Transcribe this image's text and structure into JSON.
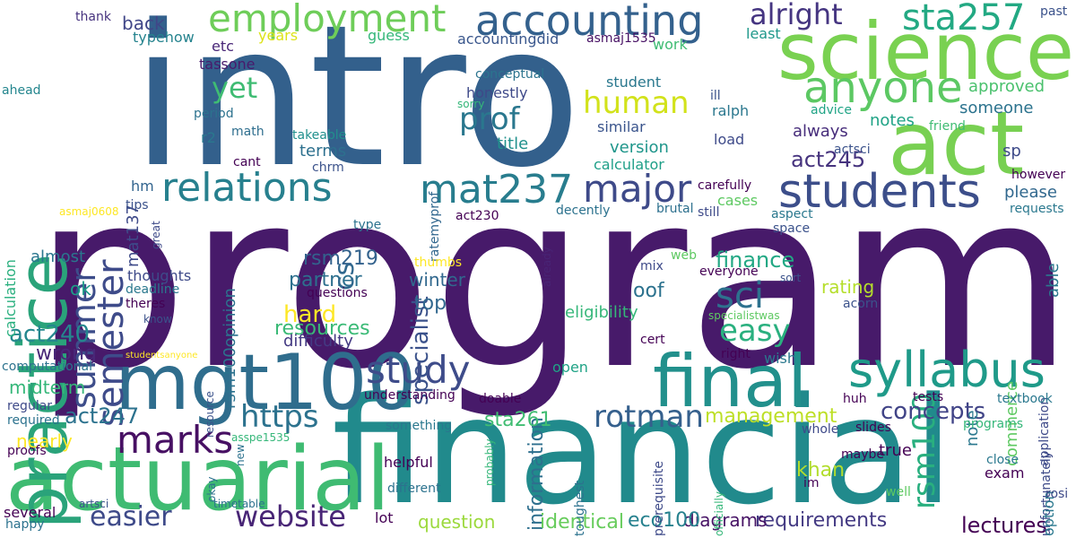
{
  "words": [
    {
      "text": "program",
      "color": "#471a6a"
    },
    {
      "text": "intro",
      "color": "#33608c"
    },
    {
      "text": "financial",
      "color": "#218a8c"
    },
    {
      "text": "actuarial",
      "color": "#3fbb72"
    },
    {
      "text": "science",
      "color": "#79d151"
    },
    {
      "text": "act",
      "color": "#78d052"
    },
    {
      "text": "practice",
      "color": "#2aa37a"
    },
    {
      "text": "mgt100",
      "color": "#2f6d8d"
    },
    {
      "text": "final",
      "color": "#22908c"
    },
    {
      "text": "syllabus",
      "color": "#1f9a89"
    },
    {
      "text": "students",
      "color": "#3c4e8a"
    },
    {
      "text": "accounting",
      "color": "#34618d"
    },
    {
      "text": "employment",
      "color": "#6ecd59"
    },
    {
      "text": "anyone",
      "color": "#5cc863"
    },
    {
      "text": "relations",
      "color": "#27808e"
    },
    {
      "text": "mat237",
      "color": "#287d8e"
    },
    {
      "text": "semester",
      "color": "#3e4b8a"
    },
    {
      "text": "summer",
      "color": "#3d4d8a"
    },
    {
      "text": "study",
      "color": "#3e4c8a"
    },
    {
      "text": "marks",
      "color": "#471063"
    },
    {
      "text": "major",
      "color": "#3e4a89"
    },
    {
      "text": "sta257",
      "color": "#23a983"
    },
    {
      "text": "sci",
      "color": "#2d718e"
    },
    {
      "text": "rsm100",
      "color": "#29af7f"
    },
    {
      "text": "https",
      "color": "#2c728e"
    },
    {
      "text": "website",
      "color": "#482576"
    },
    {
      "text": "rotman",
      "color": "#35608d"
    },
    {
      "text": "easier",
      "color": "#3e4a89"
    },
    {
      "text": "yet",
      "color": "#3fbc73"
    },
    {
      "text": "prof",
      "color": "#2a778e"
    },
    {
      "text": "human",
      "color": "#d2e21b"
    },
    {
      "text": "alright",
      "color": "#453581"
    },
    {
      "text": "easy",
      "color": "#2ab07f"
    },
    {
      "text": "act240",
      "color": "#24878e"
    },
    {
      "text": "act247",
      "color": "#2c728e"
    },
    {
      "text": "midterm",
      "color": "#35b779"
    },
    {
      "text": "concepts",
      "color": "#414487"
    },
    {
      "text": "specialist",
      "color": "#3b528b"
    },
    {
      "text": "information",
      "color": "#2e6f8e"
    },
    {
      "text": "finance",
      "color": "#22a884"
    },
    {
      "text": "lectures",
      "color": "#440154"
    },
    {
      "text": "requirements",
      "color": "#443a83"
    },
    {
      "text": "identical",
      "color": "#67cc5c"
    },
    {
      "text": "question",
      "color": "#9bd93c"
    },
    {
      "text": "diagrams",
      "color": "#471365"
    },
    {
      "text": "eco100",
      "color": "#26818e"
    },
    {
      "text": "management",
      "color": "#bddf26"
    },
    {
      "text": "partner",
      "color": "#2d708e"
    },
    {
      "text": "resources",
      "color": "#3aba76"
    },
    {
      "text": "hard",
      "color": "#fde725"
    },
    {
      "text": "cs",
      "color": "#31688e"
    },
    {
      "text": "act245",
      "color": "#46337e"
    },
    {
      "text": "sta261",
      "color": "#40bd72"
    },
    {
      "text": "khan",
      "color": "#b2dd2d"
    },
    {
      "text": "winter",
      "color": "#31688e"
    },
    {
      "text": "top",
      "color": "#31678e"
    },
    {
      "text": "rsm219",
      "color": "#33628d"
    },
    {
      "text": "oof",
      "color": "#2c728e"
    },
    {
      "text": "difficulty",
      "color": "#443a83"
    },
    {
      "text": "wrong",
      "color": "#482878"
    },
    {
      "text": "nearly",
      "color": "#fde725"
    },
    {
      "text": "rating",
      "color": "#b5de2b"
    },
    {
      "text": "almost",
      "color": "#2a768e"
    },
    {
      "text": "ok",
      "color": "#1e9d89"
    },
    {
      "text": "back",
      "color": "#404688"
    },
    {
      "text": "etc",
      "color": "#482677"
    },
    {
      "text": "years",
      "color": "#dde318"
    },
    {
      "text": "guess",
      "color": "#35b779"
    },
    {
      "text": "typehow",
      "color": "#25838e"
    },
    {
      "text": "tassone",
      "color": "#481a6c"
    },
    {
      "text": "accountingdid",
      "color": "#39568c"
    },
    {
      "text": "asmaj1535",
      "color": "#471164"
    },
    {
      "text": "work",
      "color": "#3fbc73"
    },
    {
      "text": "least",
      "color": "#1f988b"
    },
    {
      "text": "thank",
      "color": "#46327e"
    },
    {
      "text": "past",
      "color": "#3b528b"
    },
    {
      "text": "conceptual",
      "color": "#2b748e"
    },
    {
      "text": "student",
      "color": "#2a788e"
    },
    {
      "text": "honestly",
      "color": "#3e4989"
    },
    {
      "text": "approved",
      "color": "#4ac16d"
    },
    {
      "text": "someone",
      "color": "#2c738e"
    },
    {
      "text": "ralph",
      "color": "#2a778e"
    },
    {
      "text": "notes",
      "color": "#20a386"
    },
    {
      "text": "always",
      "color": "#472d7b"
    },
    {
      "text": "similar",
      "color": "#3a548c"
    },
    {
      "text": "version",
      "color": "#1f968b"
    },
    {
      "text": "calculator",
      "color": "#1f9f88"
    },
    {
      "text": "load",
      "color": "#3e4a89"
    },
    {
      "text": "title",
      "color": "#21918c"
    },
    {
      "text": "terms",
      "color": "#2d708e"
    },
    {
      "text": "takeable",
      "color": "#21908d"
    },
    {
      "text": "chrm",
      "color": "#3b528b"
    },
    {
      "text": "mat137",
      "color": "#3e4a89"
    },
    {
      "text": "r2",
      "color": "#2a788e"
    },
    {
      "text": "math",
      "color": "#2e6e8e"
    },
    {
      "text": "period",
      "color": "#2c728e"
    },
    {
      "text": "cant",
      "color": "#440154"
    },
    {
      "text": "hm",
      "color": "#32648e"
    },
    {
      "text": "tips",
      "color": "#3b528b"
    },
    {
      "text": "please",
      "color": "#31688e"
    },
    {
      "text": "sp",
      "color": "#3e4a89"
    },
    {
      "text": "able",
      "color": "#2a788e"
    },
    {
      "text": "ahead",
      "color": "#24868e"
    },
    {
      "text": "great",
      "color": "#3e4a89"
    },
    {
      "text": "sorry",
      "color": "#35b779"
    },
    {
      "text": "ill",
      "color": "#3b528b"
    },
    {
      "text": "advice",
      "color": "#20a486"
    },
    {
      "text": "friend",
      "color": "#3fbc73"
    },
    {
      "text": "ratemyprof",
      "color": "#31678e"
    },
    {
      "text": "already",
      "color": "#482475"
    },
    {
      "text": "actsci",
      "color": "#3b528b"
    },
    {
      "text": "however",
      "color": "#440154"
    },
    {
      "text": "carefully",
      "color": "#440154"
    },
    {
      "text": "cases",
      "color": "#5ec962"
    },
    {
      "text": "decently",
      "color": "#2c728e"
    },
    {
      "text": "brutal",
      "color": "#2d708e"
    },
    {
      "text": "still",
      "color": "#3e4a89"
    },
    {
      "text": "aspect",
      "color": "#2a788e"
    },
    {
      "text": "requests",
      "color": "#2a788e"
    },
    {
      "text": "act230",
      "color": "#440154"
    },
    {
      "text": "type",
      "color": "#2c728e"
    },
    {
      "text": "space",
      "color": "#3b528b"
    },
    {
      "text": "calculation",
      "color": "#2ab07f"
    },
    {
      "text": "asmaj0608",
      "color": "#fde725"
    },
    {
      "text": "rsm100opinion",
      "color": "#2c728e"
    },
    {
      "text": "thoughts",
      "color": "#3e4a89"
    },
    {
      "text": "deadline",
      "color": "#2a788e"
    },
    {
      "text": "theres",
      "color": "#440154"
    },
    {
      "text": "know",
      "color": "#3b528b"
    },
    {
      "text": "resource",
      "color": "#3b528b"
    },
    {
      "text": "okay",
      "color": "#2c728e"
    },
    {
      "text": "new",
      "color": "#2c728e"
    },
    {
      "text": "questions",
      "color": "#440154"
    },
    {
      "text": "thumbs",
      "color": "#fde725"
    },
    {
      "text": "eligibility",
      "color": "#35b779"
    },
    {
      "text": "web",
      "color": "#5ec962"
    },
    {
      "text": "mix",
      "color": "#3e4a89"
    },
    {
      "text": "everyone",
      "color": "#440154"
    },
    {
      "text": "sort",
      "color": "#3b528b"
    },
    {
      "text": "note",
      "color": "#2a788e"
    },
    {
      "text": "acorn",
      "color": "#3b528b"
    },
    {
      "text": "commerce",
      "color": "#5ec962"
    },
    {
      "text": "application",
      "color": "#3e4a89"
    },
    {
      "text": "specialistwas",
      "color": "#5ec962"
    },
    {
      "text": "probably",
      "color": "#35b779"
    },
    {
      "text": "cert",
      "color": "#440154"
    },
    {
      "text": "right",
      "color": "#440154"
    },
    {
      "text": "wish",
      "color": "#2a788e"
    },
    {
      "text": "computational",
      "color": "#2c728e"
    },
    {
      "text": "regular",
      "color": "#3e4a89"
    },
    {
      "text": "required",
      "color": "#2c728e"
    },
    {
      "text": "understanding",
      "color": "#440154"
    },
    {
      "text": "doable",
      "color": "#440154"
    },
    {
      "text": "open",
      "color": "#20a386"
    },
    {
      "text": "huh",
      "color": "#440154"
    },
    {
      "text": "tests",
      "color": "#440154"
    },
    {
      "text": "textbook",
      "color": "#2a788e"
    },
    {
      "text": "toughest",
      "color": "#2c728e"
    },
    {
      "text": "officially",
      "color": "#35b779"
    },
    {
      "text": "prerequisite",
      "color": "#3e4a89"
    },
    {
      "text": "something",
      "color": "#2a788e"
    },
    {
      "text": "whole",
      "color": "#3e4a89"
    },
    {
      "text": "slides",
      "color": "#440154"
    },
    {
      "text": "maybe",
      "color": "#440154"
    },
    {
      "text": "true",
      "color": "#440154"
    },
    {
      "text": "im",
      "color": "#440154"
    },
    {
      "text": "helpful",
      "color": "#440154"
    },
    {
      "text": "different",
      "color": "#2c728e"
    },
    {
      "text": "asspe1535",
      "color": "#35b779"
    },
    {
      "text": "programs",
      "color": "#35b779"
    },
    {
      "text": "unfortunately",
      "color": "#3e4a89"
    },
    {
      "text": "option",
      "color": "#2a788e"
    },
    {
      "text": "close",
      "color": "#2a788e"
    },
    {
      "text": "exam",
      "color": "#440154"
    },
    {
      "text": "well",
      "color": "#5ec962"
    },
    {
      "text": "rosi",
      "color": "#3e4a89"
    },
    {
      "text": "proofs",
      "color": "#440154"
    },
    {
      "text": "artsci",
      "color": "#3b528b"
    },
    {
      "text": "timetable",
      "color": "#2c728e"
    },
    {
      "text": "several",
      "color": "#440154"
    },
    {
      "text": "happy",
      "color": "#2c728e"
    },
    {
      "text": "lot",
      "color": "#440154"
    },
    {
      "text": "studentsanyone",
      "color": "#fde725"
    }
  ]
}
